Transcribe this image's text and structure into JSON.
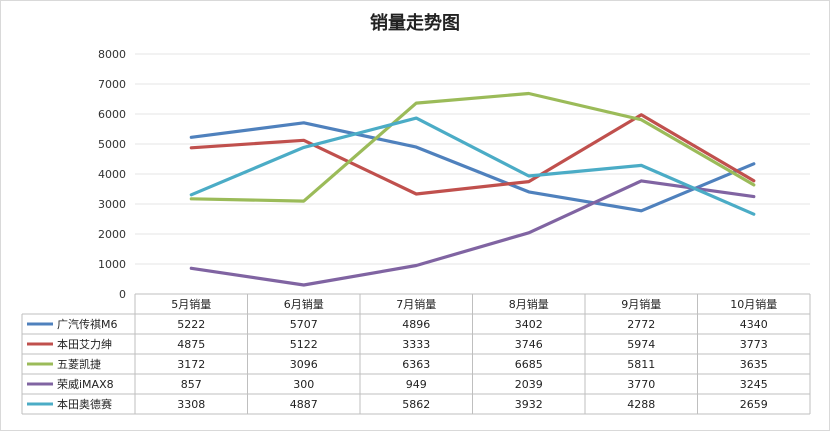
{
  "chart_data": {
    "type": "line",
    "title": "销量走势图",
    "categories": [
      "5月销量",
      "6月销量",
      "7月销量",
      "8月销量",
      "9月销量",
      "10月销量"
    ],
    "ylim": [
      0,
      8000
    ],
    "yticks": [
      0,
      1000,
      2000,
      3000,
      4000,
      5000,
      6000,
      7000,
      8000
    ],
    "grid": true,
    "legend": "data-table",
    "series": [
      {
        "name": "广汽传祺M6",
        "color": "#4F81BD",
        "values": [
          5222,
          5707,
          4896,
          3402,
          2772,
          4340
        ]
      },
      {
        "name": "本田艾力绅",
        "color": "#C0504D",
        "values": [
          4875,
          5122,
          3333,
          3746,
          5974,
          3773
        ]
      },
      {
        "name": "五菱凯捷",
        "color": "#9BBB59",
        "values": [
          3172,
          3096,
          6363,
          6685,
          5811,
          3635
        ]
      },
      {
        "name": "荣威iMAX8",
        "color": "#8064A2",
        "values": [
          857,
          300,
          949,
          2039,
          3770,
          3245
        ]
      },
      {
        "name": "本田奥德赛",
        "color": "#4BACC6",
        "values": [
          3308,
          4887,
          5862,
          3932,
          4288,
          2659
        ]
      }
    ]
  }
}
